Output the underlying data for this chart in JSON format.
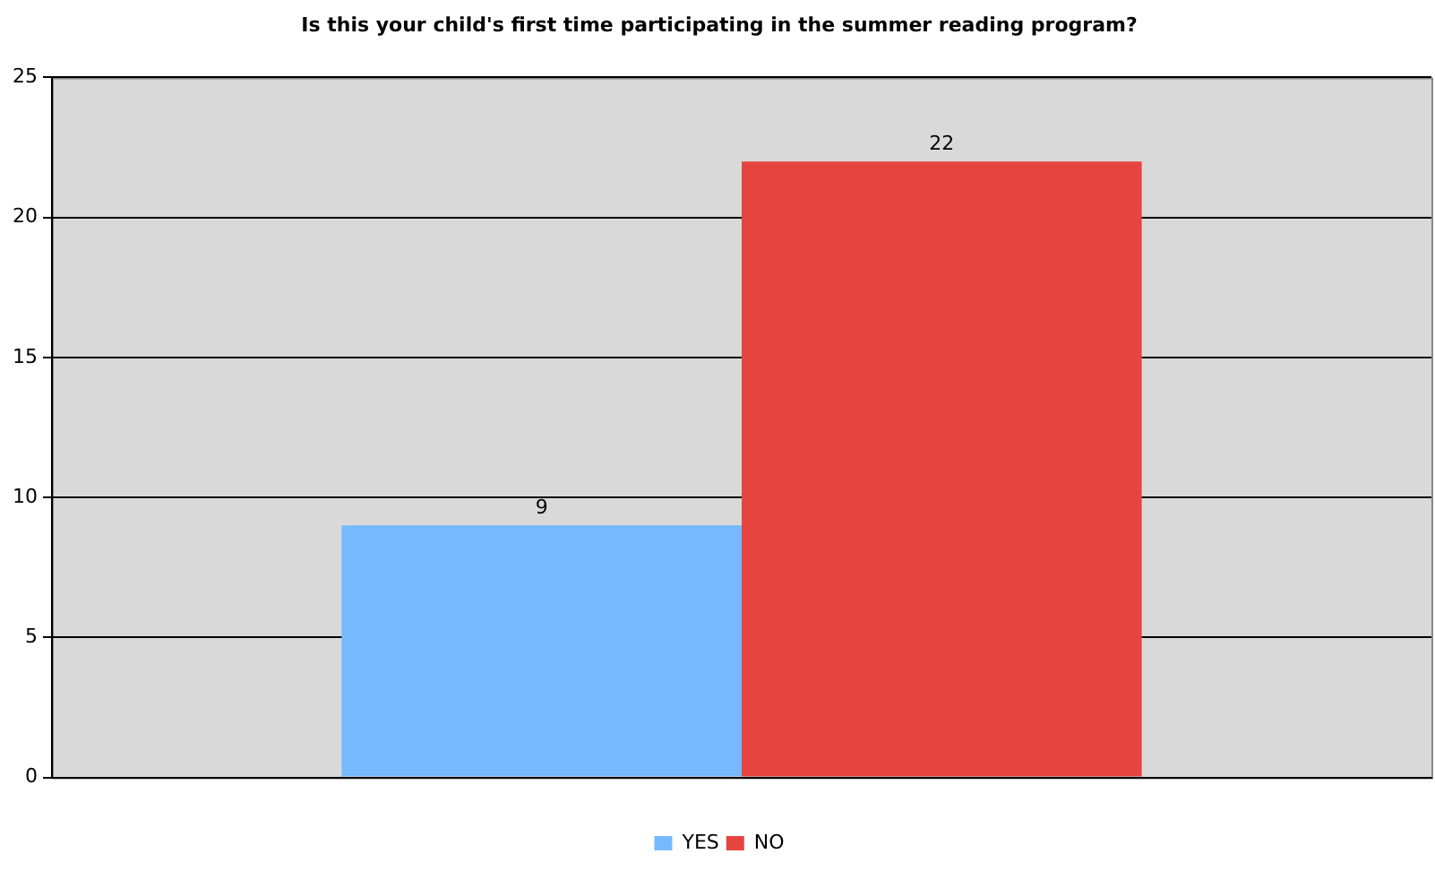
{
  "chart_data": {
    "type": "bar",
    "title": "Is this your child's first time participating in the summer reading program?",
    "categories": [
      null
    ],
    "series": [
      {
        "name": "YES",
        "color": "#77b9ff",
        "values": [
          9
        ]
      },
      {
        "name": "NO",
        "color": "#e6453f",
        "values": [
          22
        ]
      }
    ],
    "ylim": [
      0,
      25
    ],
    "yticks": [
      0,
      5,
      10,
      15,
      20,
      25
    ],
    "grid": "y",
    "legend": "bottom",
    "data_labels": true
  }
}
